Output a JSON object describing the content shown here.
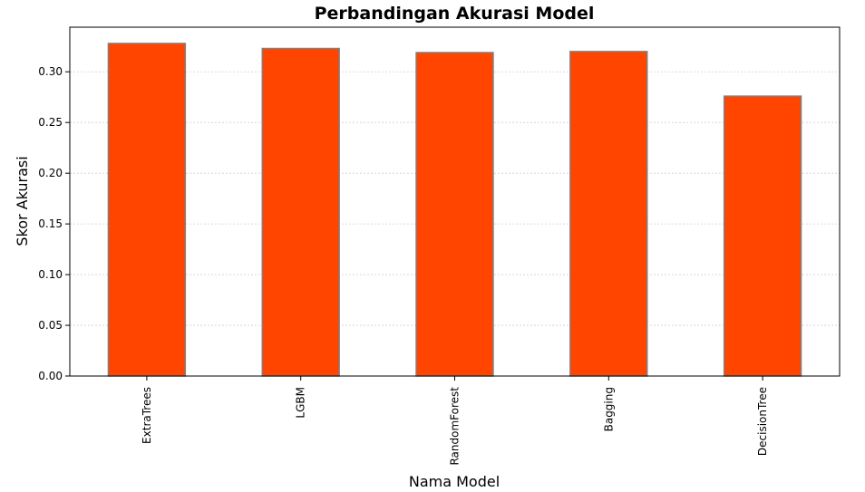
{
  "chart_data": {
    "type": "bar",
    "title": "Perbandingan Akurasi Model",
    "xlabel": "Nama Model",
    "ylabel": "Skor Akurasi",
    "categories": [
      "ExtraTrees",
      "LGBM",
      "RandomForest",
      "Bagging",
      "DecisionTree"
    ],
    "values": [
      0.328,
      0.323,
      0.319,
      0.32,
      0.276
    ],
    "ylim": [
      0,
      0.344
    ],
    "yticks": [
      0.0,
      0.05,
      0.1,
      0.15,
      0.2,
      0.25,
      0.3
    ],
    "ytick_labels": [
      "0.00",
      "0.05",
      "0.10",
      "0.15",
      "0.20",
      "0.25",
      "0.30"
    ],
    "grid": "y",
    "bar_color": "#ff4500",
    "bar_edge_color": "#808080",
    "legend": "none"
  }
}
